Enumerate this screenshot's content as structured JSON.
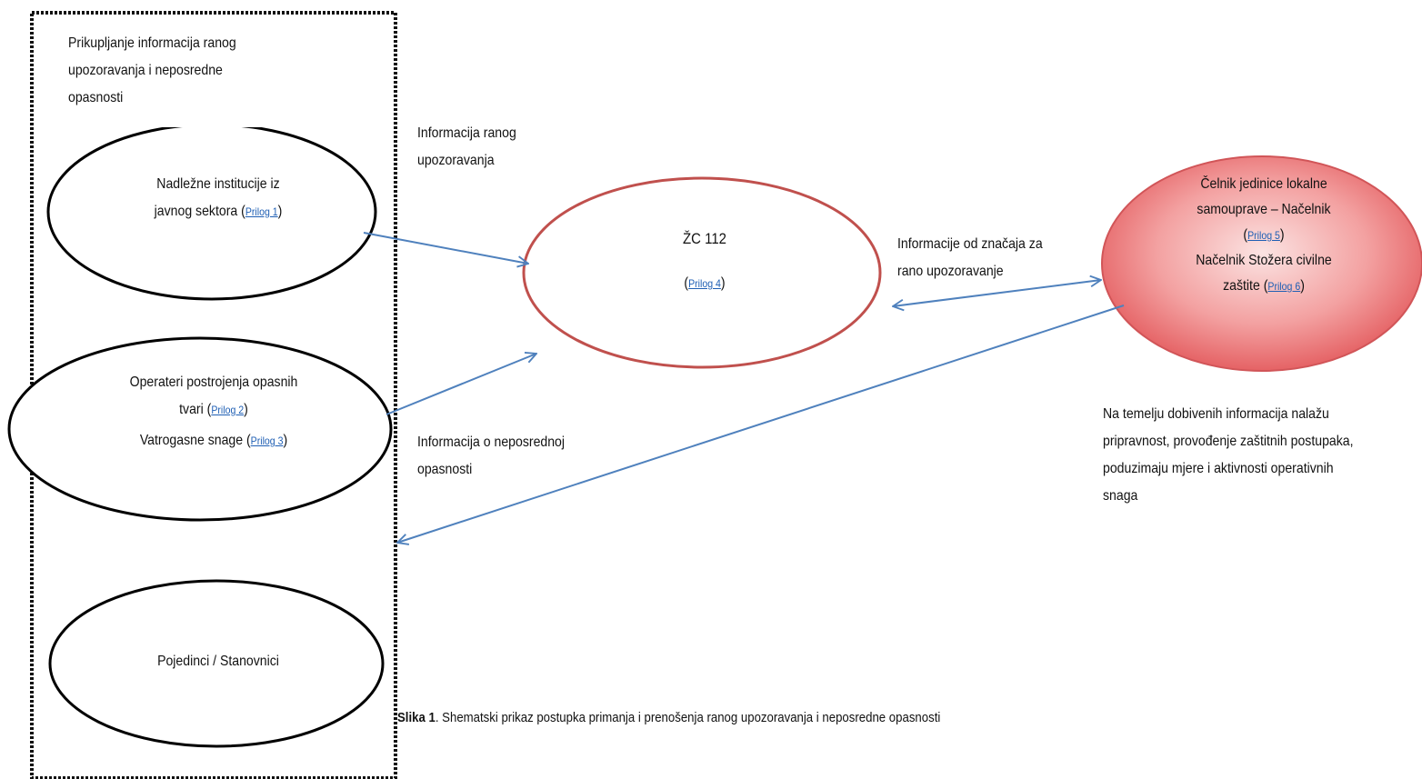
{
  "group_box": {
    "title_lines": [
      "Prikupljanje informacija ranog",
      "upozoravanja i neposredne",
      "opasnosti"
    ]
  },
  "nodes": {
    "institutions": {
      "line1": "Nadležne institucije iz",
      "line2_text": "javnog sektora (",
      "link": "Prilog 1",
      "close": ")"
    },
    "operators": {
      "line1": "Operateri postrojenja opasnih",
      "line2_text": "tvari (",
      "link": "Prilog 2",
      "close": ")",
      "line3_text": "Vatrogasne snage (",
      "link2": "Prilog 3",
      "close2": ")"
    },
    "citizens": {
      "label": "Pojedinci / Stanovnici"
    },
    "zc112": {
      "label": "ŽC 112",
      "open": "(",
      "link": "Prilog 4",
      "close": ")"
    },
    "chief": {
      "line1": "Čelnik jedinice lokalne",
      "line2": "samouprave –  Načelnik",
      "open": "(",
      "link": "Prilog 5",
      "close": ")",
      "line4": "Načelnik Stožera civilne",
      "line5_text": "zaštite (",
      "link2": "Prilog 6",
      "close2": ")"
    }
  },
  "edge_labels": {
    "early_warning": [
      "Informacija ranog",
      "upozoravanja"
    ],
    "significance": [
      "Informacije od značaja za",
      "rano upozoravanje"
    ],
    "danger": [
      "Informacija o neposrednoj",
      "opasnosti"
    ]
  },
  "outcome_note": [
    "Na temelju dobivenih informacija nalažu",
    "pripravnost, provođenje zaštitnih postupaka,",
    "poduzimaju mjere i aktivnosti operativnih",
    "snaga"
  ],
  "caption": {
    "bold": "Slika 1",
    "text": ". Shematski prikaz postupka primanja i prenošenja ranog upozoravanja i neposredne opasnosti"
  },
  "colors": {
    "arrow": "#4f81bd",
    "zc_stroke": "#c0504d",
    "chief_fill_inner": "#f9c9c8",
    "chief_fill_outer": "#e2575a",
    "link": "#1f5fb4"
  }
}
